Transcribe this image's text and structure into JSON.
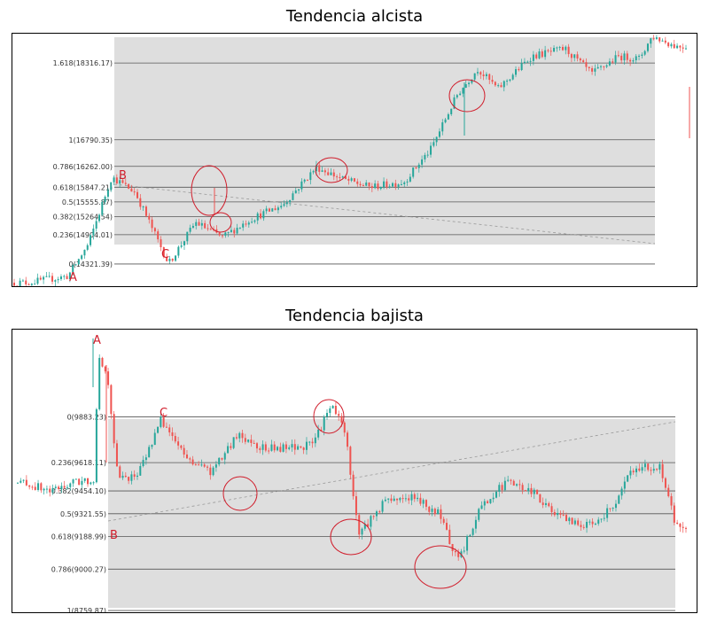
{
  "chart_data": [
    {
      "type": "candlestick",
      "title": "Tendencia alcista",
      "fib_levels": [
        {
          "label": "1.618(18316.17)",
          "ratio": 1.618,
          "price": 18316.17
        },
        {
          "label": "1(16790.35)",
          "ratio": 1,
          "price": 16790.35
        },
        {
          "label": "0.786(16262.00)",
          "ratio": 0.786,
          "price": 16262.0
        },
        {
          "label": "0.618(15847.21)",
          "ratio": 0.618,
          "price": 15847.21
        },
        {
          "label": "0.5(15555.87)",
          "ratio": 0.5,
          "price": 15555.87
        },
        {
          "label": "0.382(15264.54)",
          "ratio": 0.382,
          "price": 15264.54
        },
        {
          "label": "0.236(14904.01)",
          "ratio": 0.236,
          "price": 14904.01
        },
        {
          "label": "0(14321.39)",
          "ratio": 0,
          "price": 14321.39
        }
      ],
      "points": [
        {
          "label": "A",
          "x": 0.09,
          "price": 13950
        },
        {
          "label": "B",
          "x": 0.15,
          "price": 16000
        },
        {
          "label": "C",
          "x": 0.23,
          "price": 14330
        }
      ],
      "ylim": [
        13880,
        18900
      ],
      "anchors": [
        [
          0.02,
          13950
        ],
        [
          0.08,
          14080
        ],
        [
          0.11,
          14700
        ],
        [
          0.145,
          16050
        ],
        [
          0.18,
          15750
        ],
        [
          0.23,
          14330
        ],
        [
          0.27,
          15150
        ],
        [
          0.31,
          14850
        ],
        [
          0.35,
          15200
        ],
        [
          0.4,
          15500
        ],
        [
          0.45,
          16250
        ],
        [
          0.49,
          16000
        ],
        [
          0.53,
          15850
        ],
        [
          0.58,
          15950
        ],
        [
          0.62,
          16600
        ],
        [
          0.66,
          17700
        ],
        [
          0.69,
          18200
        ],
        [
          0.72,
          17800
        ],
        [
          0.77,
          18450
        ],
        [
          0.82,
          18600
        ],
        [
          0.86,
          18100
        ],
        [
          0.9,
          18450
        ],
        [
          0.93,
          18400
        ],
        [
          0.95,
          18850
        ],
        [
          0.985,
          18650
        ]
      ],
      "colors": {
        "up": "#26a69a",
        "down": "#ef5350",
        "region": "#dedede",
        "circle": "#d01c2a"
      }
    },
    {
      "type": "candlestick",
      "title": "Tendencia bajista",
      "fib_levels": [
        {
          "label": "0(9883.23)",
          "ratio": 0,
          "price": 9883.23
        },
        {
          "label": "0.236(9618.11)",
          "ratio": 0.236,
          "price": 9618.11
        },
        {
          "label": "0.382(9454.10)",
          "ratio": 0.382,
          "price": 9454.1
        },
        {
          "label": "0.5(9321.55)",
          "ratio": 0.5,
          "price": 9321.55
        },
        {
          "label": "0.618(9188.99)",
          "ratio": 0.618,
          "price": 9188.99
        },
        {
          "label": "0.786(9000.27)",
          "ratio": 0.786,
          "price": 9000.27
        },
        {
          "label": "1(8759.87)",
          "ratio": 1,
          "price": 8759.87
        }
      ],
      "points": [
        {
          "label": "A",
          "x": 0.12,
          "price": 10250
        },
        {
          "label": "B",
          "x": 0.12,
          "price": 9200
        },
        {
          "label": "C",
          "x": 0.215,
          "price": 9880
        }
      ],
      "ylim": [
        8750,
        10390
      ],
      "anchors": [
        [
          0.01,
          9500
        ],
        [
          0.05,
          9450
        ],
        [
          0.08,
          9500
        ],
        [
          0.115,
          9520
        ],
        [
          0.12,
          10260
        ],
        [
          0.135,
          10100
        ],
        [
          0.15,
          9520
        ],
        [
          0.18,
          9550
        ],
        [
          0.215,
          9870
        ],
        [
          0.25,
          9650
        ],
        [
          0.29,
          9560
        ],
        [
          0.33,
          9780
        ],
        [
          0.37,
          9700
        ],
        [
          0.4,
          9700
        ],
        [
          0.44,
          9720
        ],
        [
          0.47,
          9950
        ],
        [
          0.49,
          9800
        ],
        [
          0.51,
          9200
        ],
        [
          0.55,
          9400
        ],
        [
          0.59,
          9420
        ],
        [
          0.63,
          9320
        ],
        [
          0.66,
          9040
        ],
        [
          0.69,
          9350
        ],
        [
          0.73,
          9500
        ],
        [
          0.77,
          9450
        ],
        [
          0.81,
          9300
        ],
        [
          0.85,
          9250
        ],
        [
          0.89,
          9350
        ],
        [
          0.92,
          9580
        ],
        [
          0.96,
          9600
        ],
        [
          0.985,
          9250
        ]
      ],
      "colors": {
        "up": "#26a69a",
        "down": "#ef5350",
        "region": "#dedede",
        "circle": "#d01c2a"
      }
    }
  ]
}
